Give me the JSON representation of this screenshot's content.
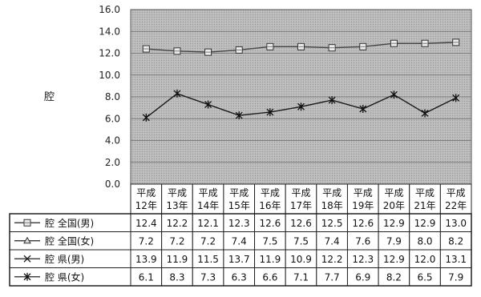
{
  "chart_data": {
    "type": "line",
    "ylabel": "腔",
    "ylim": [
      0,
      16
    ],
    "yticks": [
      "0.0",
      "2.0",
      "4.0",
      "6.0",
      "8.0",
      "10.0",
      "12.0",
      "14.0",
      "16.0"
    ],
    "grid": true,
    "categories": [
      [
        "平成",
        "12年"
      ],
      [
        "平成",
        "13年"
      ],
      [
        "平成",
        "14年"
      ],
      [
        "平成",
        "15年"
      ],
      [
        "平成",
        "16年"
      ],
      [
        "平成",
        "17年"
      ],
      [
        "平成",
        "18年"
      ],
      [
        "平成",
        "19年"
      ],
      [
        "平成",
        "20年"
      ],
      [
        "平成",
        "21年"
      ],
      [
        "平成",
        "22年"
      ]
    ],
    "series": [
      {
        "name": "腔 全国(男)",
        "marker": "square",
        "values": [
          12.4,
          12.2,
          12.1,
          12.3,
          12.6,
          12.6,
          12.5,
          12.6,
          12.9,
          12.9,
          13.0
        ],
        "labels": [
          "12.4",
          "12.2",
          "12.1",
          "12.3",
          "12.6",
          "12.6",
          "12.5",
          "12.6",
          "12.9",
          "12.9",
          "13.0"
        ]
      },
      {
        "name": "腔 全国(女)",
        "marker": "triangle",
        "values": [
          7.2,
          7.2,
          7.2,
          7.4,
          7.5,
          7.5,
          7.4,
          7.6,
          7.9,
          8.0,
          8.2
        ],
        "labels": [
          "7.2",
          "7.2",
          "7.2",
          "7.4",
          "7.5",
          "7.5",
          "7.4",
          "7.6",
          "7.9",
          "8.0",
          "8.2"
        ]
      },
      {
        "name": "腔 県(男)",
        "marker": "x",
        "values": [
          13.9,
          11.9,
          11.5,
          13.7,
          11.9,
          10.9,
          12.2,
          12.3,
          12.9,
          12.0,
          13.1
        ],
        "labels": [
          "13.9",
          "11.9",
          "11.5",
          "13.7",
          "11.9",
          "10.9",
          "12.2",
          "12.3",
          "12.9",
          "12.0",
          "13.1"
        ]
      },
      {
        "name": "腔 県(女)",
        "marker": "star",
        "values": [
          6.1,
          8.3,
          7.3,
          6.3,
          6.6,
          7.1,
          7.7,
          6.9,
          8.2,
          6.5,
          7.9
        ],
        "labels": [
          "6.1",
          "8.3",
          "7.3",
          "6.3",
          "6.6",
          "7.1",
          "7.7",
          "6.9",
          "8.2",
          "6.5",
          "7.9"
        ]
      }
    ],
    "plotted_series": [
      0,
      3
    ]
  }
}
